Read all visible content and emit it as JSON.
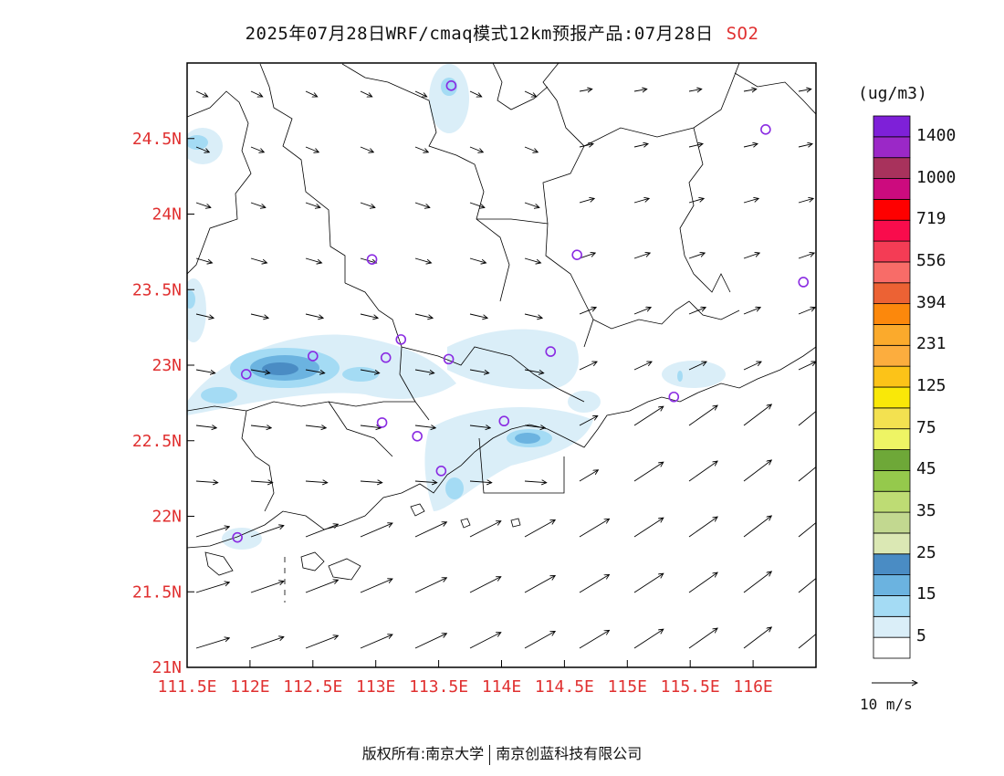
{
  "header": {
    "title": "2025年07月28日WRF/cmaq模式12km预报产品:07月28日",
    "species": "SO2"
  },
  "map": {
    "lat_ticks": [
      "24.5N",
      "24N",
      "23.5N",
      "23N",
      "22.5N",
      "22N",
      "21.5N",
      "21N"
    ],
    "lon_ticks": [
      "111.5E",
      "112E",
      "112.5E",
      "113E",
      "113.5E",
      "114E",
      "114.5E",
      "115E",
      "115.5E",
      "116E"
    ],
    "lat_range": [
      21.0,
      25.0
    ],
    "lon_range": [
      111.5,
      116.5
    ]
  },
  "stations": [
    {
      "lon": 113.6,
      "lat": 24.85
    },
    {
      "lon": 116.1,
      "lat": 24.56
    },
    {
      "lon": 112.97,
      "lat": 23.7
    },
    {
      "lon": 114.6,
      "lat": 23.73
    },
    {
      "lon": 116.4,
      "lat": 23.55
    },
    {
      "lon": 113.2,
      "lat": 23.17
    },
    {
      "lon": 112.5,
      "lat": 23.06
    },
    {
      "lon": 113.08,
      "lat": 23.05
    },
    {
      "lon": 113.58,
      "lat": 23.04
    },
    {
      "lon": 114.39,
      "lat": 23.09
    },
    {
      "lon": 111.97,
      "lat": 22.94
    },
    {
      "lon": 115.37,
      "lat": 22.79
    },
    {
      "lon": 113.05,
      "lat": 22.62
    },
    {
      "lon": 113.33,
      "lat": 22.53
    },
    {
      "lon": 114.02,
      "lat": 22.63
    },
    {
      "lon": 113.52,
      "lat": 22.3
    },
    {
      "lon": 111.9,
      "lat": 21.86
    }
  ],
  "colorbar": {
    "units": "(ug/m3)",
    "colors": [
      "#ffffff",
      "#daeef8",
      "#a4dbf4",
      "#6bb3e0",
      "#4a8cc4",
      "#dbe8b4",
      "#c2d890",
      "#bedc74",
      "#95c94c",
      "#6ea838",
      "#eef464",
      "#f3e150",
      "#f9e808",
      "#fcc318",
      "#fcad3e",
      "#fbaa2c",
      "#fc880c",
      "#ec6234",
      "#f86c68",
      "#f43c55",
      "#f90c4c",
      "#fe0000",
      "#cc0b7e",
      "#a8325c",
      "#9b28c7",
      "#7e20d8"
    ],
    "labels": [
      "5",
      "15",
      "25",
      "35",
      "45",
      "75",
      "125",
      "231",
      "394",
      "556",
      "719",
      "1000",
      "1400"
    ]
  },
  "wind": {
    "reference_label": "10 m/s"
  },
  "footer": {
    "left": "版权所有:南京大学",
    "right": "南京创蓝科技有限公司"
  }
}
